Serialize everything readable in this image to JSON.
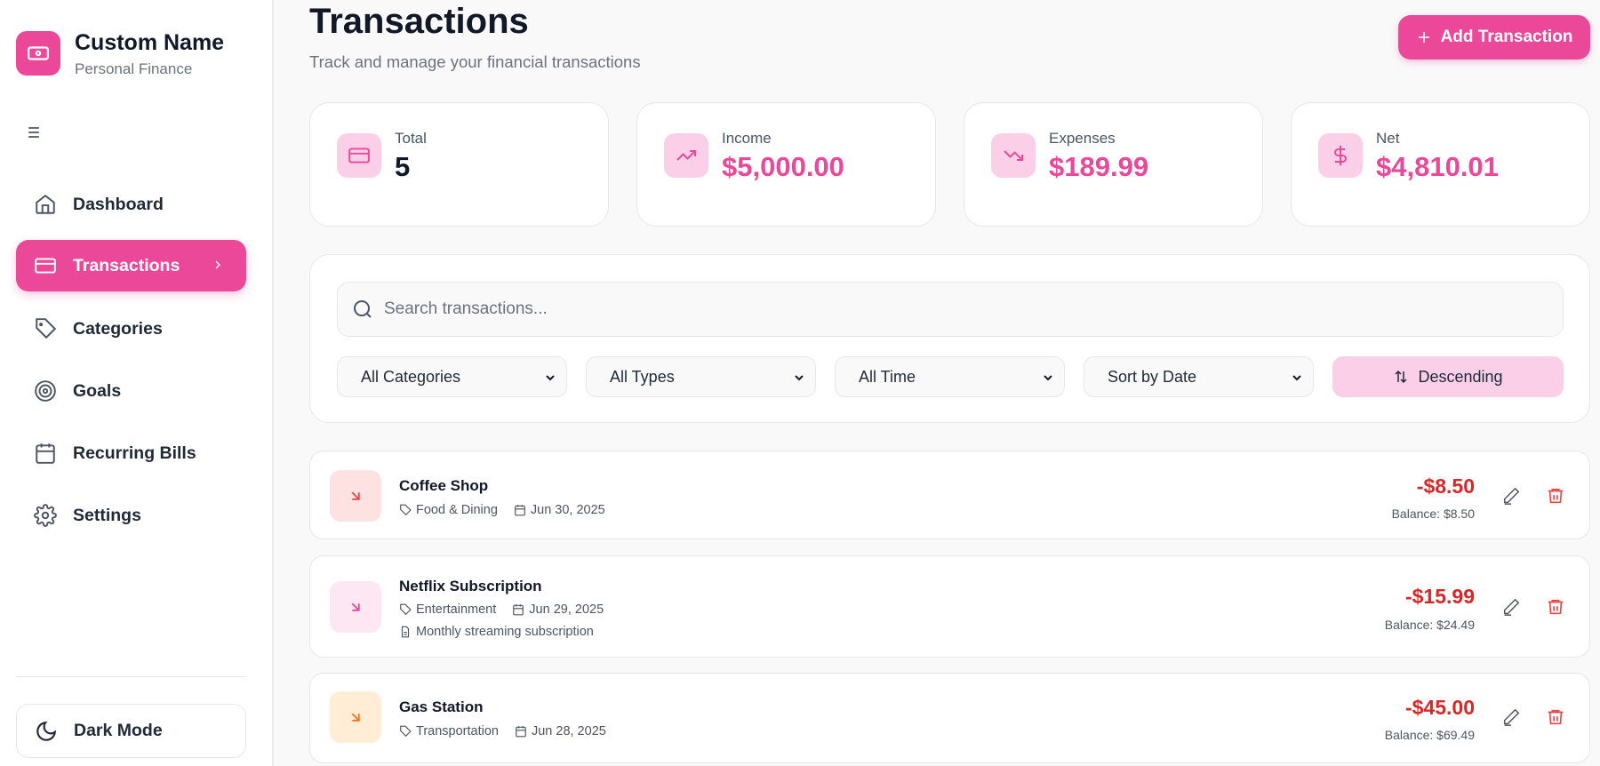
{
  "sidebar": {
    "brand_title": "Custom Name",
    "brand_subtitle": "Personal Finance",
    "items": [
      {
        "label": "Dashboard",
        "icon": "home-icon"
      },
      {
        "label": "Transactions",
        "icon": "credit-card-icon",
        "active": true
      },
      {
        "label": "Categories",
        "icon": "tag-icon"
      },
      {
        "label": "Goals",
        "icon": "target-icon"
      },
      {
        "label": "Recurring Bills",
        "icon": "calendar-icon"
      },
      {
        "label": "Settings",
        "icon": "gear-icon"
      }
    ],
    "dark_mode_label": "Dark Mode"
  },
  "header": {
    "title": "Transactions",
    "subtitle": "Track and manage your financial transactions",
    "add_label": "Add Transaction"
  },
  "stats": [
    {
      "label": "Total",
      "value": "5"
    },
    {
      "label": "Income",
      "value": "$5,000.00"
    },
    {
      "label": "Expenses",
      "value": "$189.99"
    },
    {
      "label": "Net",
      "value": "$4,810.01"
    }
  ],
  "filters": {
    "search_placeholder": "Search transactions...",
    "category": "All Categories",
    "type": "All Types",
    "time": "All Time",
    "sort": "Sort by Date",
    "order": "Descending"
  },
  "transactions": [
    {
      "title": "Coffee Shop",
      "category": "Food & Dining",
      "date": "Jun 30, 2025",
      "amount": "-$8.50",
      "balance": "Balance: $8.50",
      "color": "#ef4444",
      "bg": "#fee2e2"
    },
    {
      "title": "Netflix Subscription",
      "category": "Entertainment",
      "date": "Jun 29, 2025",
      "note": "Monthly streaming subscription",
      "amount": "-$15.99",
      "balance": "Balance: $24.49",
      "color": "#ec4899",
      "bg": "#fce7f3"
    },
    {
      "title": "Gas Station",
      "category": "Transportation",
      "date": "Jun 28, 2025",
      "amount": "-$45.00",
      "balance": "Balance: $69.49",
      "color": "#f97316",
      "bg": "#ffedd5"
    }
  ],
  "colors": {
    "accent": "#ec4899",
    "accent_light": "#fbcfe8",
    "expense": "#dc2626"
  }
}
